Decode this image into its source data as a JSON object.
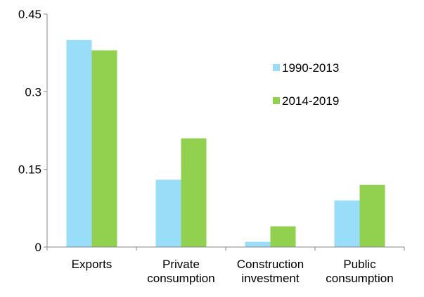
{
  "chart_data": {
    "type": "bar",
    "categories": [
      [
        "Exports"
      ],
      [
        "Private",
        "consumption"
      ],
      [
        "Construction",
        "investment"
      ],
      [
        "Public",
        "consumption"
      ]
    ],
    "series": [
      {
        "name": "1990-2013",
        "color": "#99DDF9",
        "values": [
          0.4,
          0.13,
          0.01,
          0.09
        ]
      },
      {
        "name": "2014-2019",
        "color": "#92D050",
        "values": [
          0.38,
          0.21,
          0.04,
          0.12
        ]
      }
    ],
    "yticks": [
      "0",
      "0.15",
      "0.3",
      "0.45"
    ],
    "ylim": [
      0,
      0.45
    ],
    "xlabel": "",
    "ylabel": "",
    "title": "",
    "grid": false,
    "legend_position": "right-top"
  }
}
